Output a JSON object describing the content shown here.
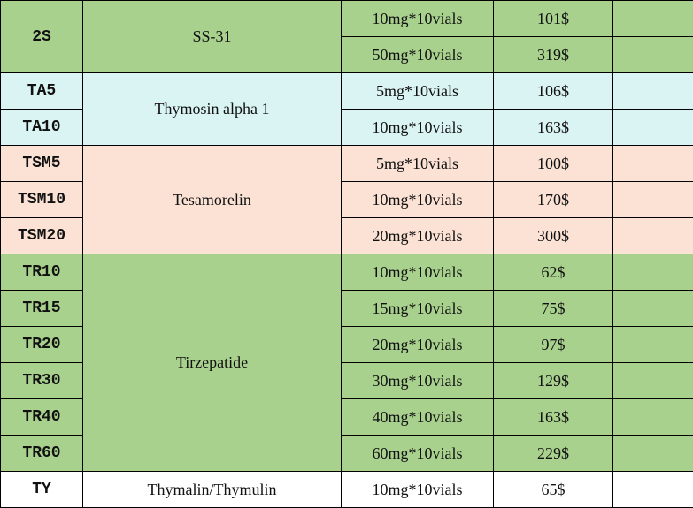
{
  "groups": [
    {
      "color": "#a9d18e",
      "name": "SS-31",
      "codes": [
        "2S"
      ],
      "items": [
        {
          "spec": "10mg*10vials",
          "price": "101$"
        },
        {
          "spec": "50mg*10vials",
          "price": "319$"
        }
      ]
    },
    {
      "color": "#daf3f3",
      "name": "Thymosin alpha 1",
      "codes": [
        "TA5",
        "TA10"
      ],
      "items": [
        {
          "spec": "5mg*10vials",
          "price": "106$"
        },
        {
          "spec": "10mg*10vials",
          "price": "163$"
        }
      ]
    },
    {
      "color": "#fbe2d5",
      "name": "Tesamorelin",
      "codes": [
        "TSM5",
        "TSM10",
        "TSM20"
      ],
      "items": [
        {
          "spec": "5mg*10vials",
          "price": "100$"
        },
        {
          "spec": "10mg*10vials",
          "price": "170$"
        },
        {
          "spec": "20mg*10vials",
          "price": "300$"
        }
      ]
    },
    {
      "color": "#a9d18e",
      "name": "Tirzepatide",
      "codes": [
        "TR10",
        "TR15",
        "TR20",
        "TR30",
        "TR40",
        "TR60"
      ],
      "items": [
        {
          "spec": "10mg*10vials",
          "price": "62$"
        },
        {
          "spec": "15mg*10vials",
          "price": "75$"
        },
        {
          "spec": "20mg*10vials",
          "price": "97$"
        },
        {
          "spec": "30mg*10vials",
          "price": "129$"
        },
        {
          "spec": "40mg*10vials",
          "price": "163$"
        },
        {
          "spec": "60mg*10vials",
          "price": "229$"
        }
      ]
    },
    {
      "color": "#ffffff",
      "name": "Thymalin/Thymulin",
      "codes": [
        "TY"
      ],
      "items": [
        {
          "spec": "10mg*10vials",
          "price": "65$"
        }
      ]
    }
  ]
}
